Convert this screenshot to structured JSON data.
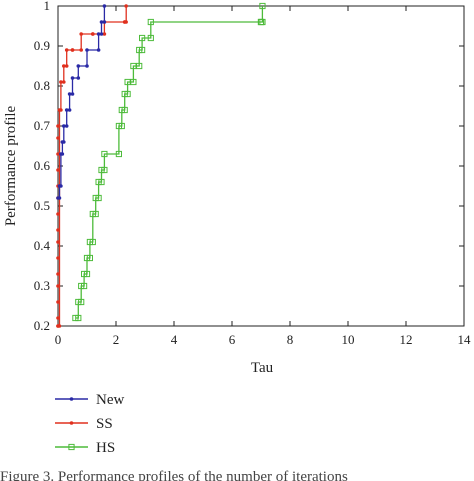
{
  "chart_data": {
    "type": "line",
    "xlabel": "Tau",
    "ylabel": "Performance profile",
    "xlim": [
      0,
      14
    ],
    "ylim": [
      0.2,
      1
    ],
    "xticks": [
      "0",
      "2",
      "4",
      "6",
      "8",
      "10",
      "12",
      "14"
    ],
    "yticks": [
      "0.2",
      "0.3",
      "0.4",
      "0.5",
      "0.6",
      "0.7",
      "0.8",
      "0.9",
      "1"
    ],
    "grid": false,
    "legend_position": "below",
    "series": [
      {
        "name": "New",
        "color": "#2a2aa6",
        "marker": "dot",
        "x": [
          0,
          0.05,
          0.1,
          0.15,
          0.2,
          0.3,
          0.4,
          0.5,
          0.7,
          1.0,
          1.4,
          1.5,
          1.6
        ],
        "y": [
          0.52,
          0.55,
          0.63,
          0.66,
          0.7,
          0.74,
          0.78,
          0.82,
          0.85,
          0.89,
          0.93,
          0.96,
          1.0
        ]
      },
      {
        "name": "SS",
        "color": "#e0301e",
        "marker": "dot",
        "x": [
          0,
          0.05,
          0.1,
          0.2,
          0.3,
          0.5,
          0.8,
          1.2,
          1.6,
          2.3,
          2.35
        ],
        "y": [
          0.2,
          0.74,
          0.81,
          0.85,
          0.89,
          0.89,
          0.93,
          0.93,
          0.96,
          0.96,
          1.0
        ],
        "vertical_markers": [
          0.2,
          0.22,
          0.26,
          0.3,
          0.33,
          0.37,
          0.41,
          0.44,
          0.48,
          0.52,
          0.55,
          0.59,
          0.63,
          0.67,
          0.7
        ]
      },
      {
        "name": "HS",
        "color": "#4dbb3a",
        "marker": "square",
        "x": [
          0.6,
          0.7,
          0.8,
          0.9,
          1.0,
          1.1,
          1.2,
          1.3,
          1.4,
          1.5,
          1.6,
          2.1,
          2.2,
          2.3,
          2.4,
          2.6,
          2.8,
          2.9,
          3.2,
          7.0,
          7.05
        ],
        "y": [
          0.22,
          0.26,
          0.3,
          0.33,
          0.37,
          0.41,
          0.48,
          0.52,
          0.56,
          0.59,
          0.63,
          0.7,
          0.74,
          0.78,
          0.81,
          0.85,
          0.89,
          0.92,
          0.96,
          0.96,
          1.0
        ]
      }
    ],
    "caption": "Figure 3. Performance profiles of the number of iterations"
  }
}
